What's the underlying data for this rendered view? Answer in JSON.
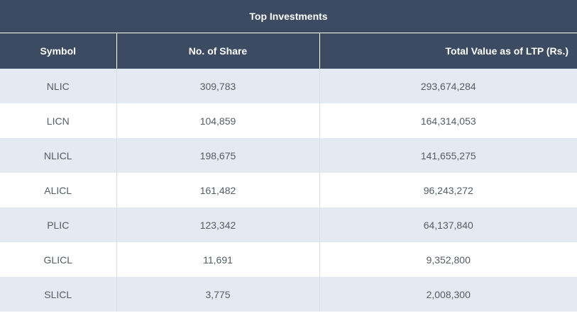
{
  "table": {
    "title": "Top Investments",
    "columns": [
      "Symbol",
      "No. of Share",
      "Total Value as of LTP (Rs.)"
    ],
    "rows": [
      {
        "symbol": "NLIC",
        "shares": "309,783",
        "value": "293,674,284"
      },
      {
        "symbol": "LICN",
        "shares": "104,859",
        "value": "164,314,053"
      },
      {
        "symbol": "NLICL",
        "shares": "198,675",
        "value": "141,655,275"
      },
      {
        "symbol": "ALICL",
        "shares": "161,482",
        "value": "96,243,272"
      },
      {
        "symbol": "PLIC",
        "shares": "123,342",
        "value": "64,137,840"
      },
      {
        "symbol": "GLICL",
        "shares": "11,691",
        "value": "9,352,800"
      },
      {
        "symbol": "SLICL",
        "shares": "3,775",
        "value": "2,008,300"
      }
    ]
  }
}
